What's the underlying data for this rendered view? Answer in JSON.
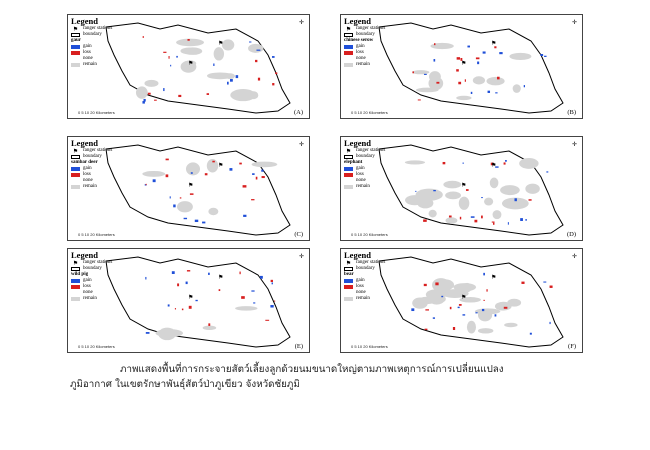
{
  "panels": [
    {
      "id": "A",
      "label": "(A)",
      "species": "gaur",
      "legend_title": "Legend",
      "legend": [
        "ranger stations",
        "boundary",
        "gaur",
        "gain",
        "loss",
        "none",
        "remain"
      ]
    },
    {
      "id": "B",
      "label": "(B)",
      "species": "chinese serow",
      "legend_title": "Legend",
      "legend": [
        "ranger stations",
        "boundary",
        "chinese serow",
        "gain",
        "loss",
        "none",
        "remain"
      ]
    },
    {
      "id": "C",
      "label": "(C)",
      "species": "sambar deer",
      "legend_title": "Legend",
      "legend": [
        "ranger stations",
        "boundary",
        "sambar deer",
        "gain",
        "loss",
        "none",
        "remain"
      ]
    },
    {
      "id": "D",
      "label": "(D)",
      "species": "elephant",
      "legend_title": "Legend",
      "legend": [
        "ranger stations",
        "boundary",
        "elephant",
        "gain",
        "loss",
        "none",
        "remain"
      ]
    },
    {
      "id": "E",
      "label": "(E)",
      "species": "wild pig",
      "legend_title": "Legend",
      "legend": [
        "ranger stations",
        "boundary",
        "wild pig",
        "gain",
        "loss",
        "none",
        "remain"
      ]
    },
    {
      "id": "F",
      "label": "(F)",
      "species": "bear",
      "legend_title": "Legend",
      "legend": [
        "ranger stations",
        "boundary",
        "bear",
        "gain",
        "loss",
        "none",
        "remain"
      ]
    }
  ],
  "scale_text": "0   5   10        20 Kilometers",
  "colors": {
    "gain": "#1f4fd8",
    "loss": "#d81f1f",
    "none": "#ffffff",
    "remain": "#d4d4d4",
    "boundary": "#000000"
  },
  "caption": {
    "line1": "ภาพแสดงพื้นที่การกระจายสัตว์เลี้ยงลูกด้วยนมขนาดใหญ่ตามภาพเหตุการณ์การเปลี่ยนแปลง",
    "line2": "ภูมิอากาศ ในเขตรักษาพันธุ์สัตว์ป่าภูเขียว จังหวัดชัยภูมิ"
  }
}
